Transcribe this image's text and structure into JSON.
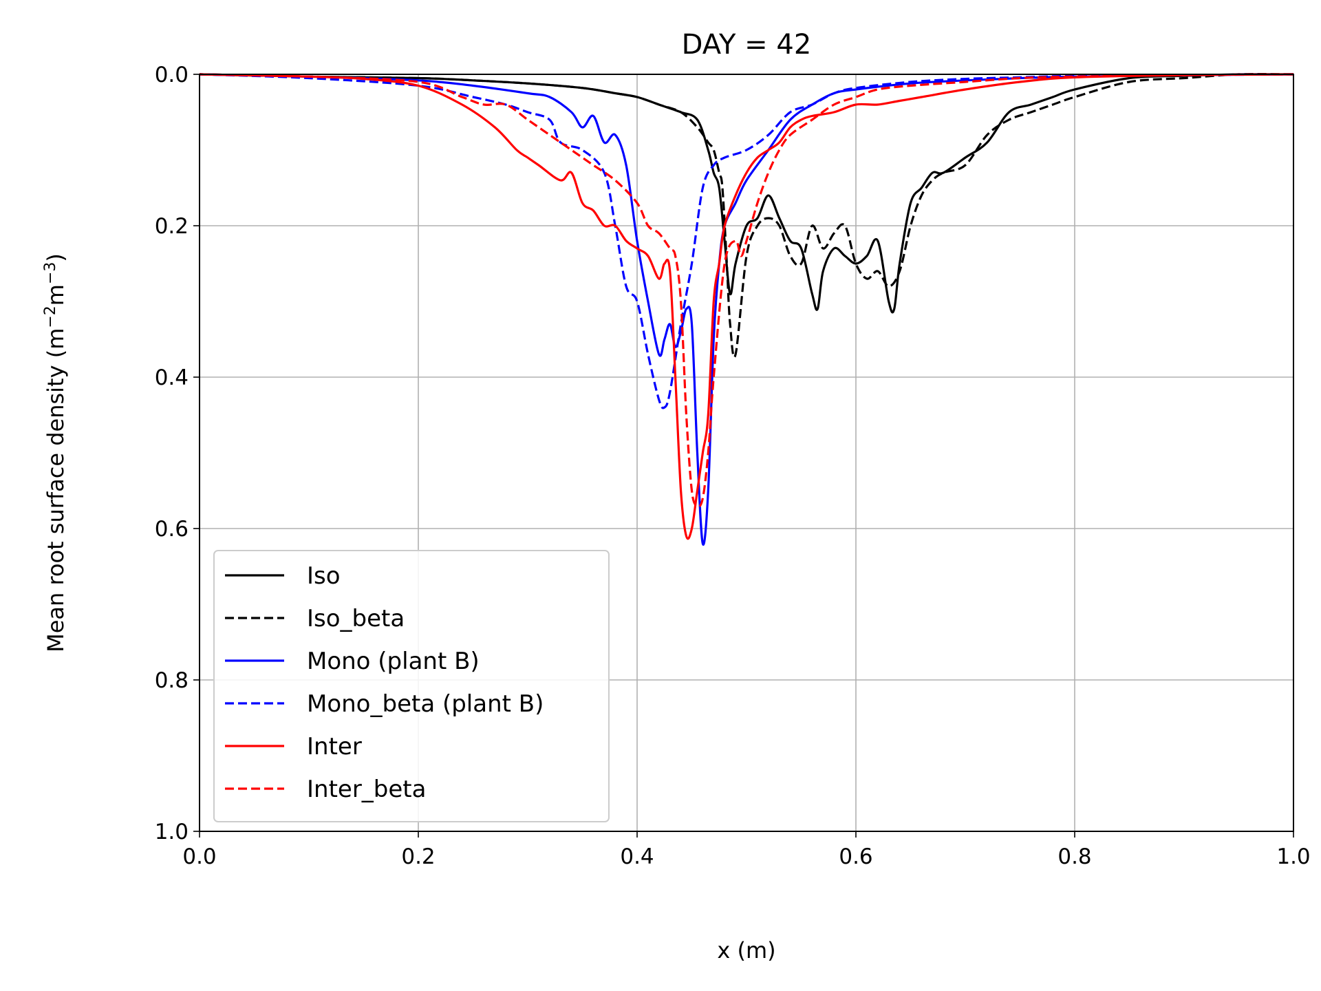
{
  "chart_data": {
    "type": "line",
    "title": "DAY = 42",
    "xlabel": "x (m)",
    "ylabel": {
      "base": "Mean root surface density (m",
      "sup1": "−2",
      "mid": "m",
      "sup2": "−3",
      "end": ")"
    },
    "xlim": [
      0.0,
      1.0
    ],
    "ylim": [
      0.0,
      1.0
    ],
    "y_inverted": true,
    "grid": true,
    "legend_position": "lower-left",
    "xticks": [
      0.0,
      0.2,
      0.4,
      0.6,
      0.8,
      1.0
    ],
    "yticks": [
      0.0,
      0.2,
      0.4,
      0.6,
      0.8,
      1.0
    ],
    "xtick_labels": [
      "0.0",
      "0.2",
      "0.4",
      "0.6",
      "0.8",
      "1.0"
    ],
    "ytick_labels": [
      "0.0",
      "0.2",
      "0.4",
      "0.6",
      "0.8",
      "1.0"
    ],
    "series": [
      {
        "name": "Iso",
        "color": "#000000",
        "dashed": false,
        "x": [
          0.0,
          0.1,
          0.2,
          0.25,
          0.3,
          0.35,
          0.38,
          0.4,
          0.42,
          0.44,
          0.455,
          0.465,
          0.47,
          0.475,
          0.48,
          0.485,
          0.49,
          0.5,
          0.51,
          0.52,
          0.53,
          0.54,
          0.55,
          0.56,
          0.565,
          0.57,
          0.58,
          0.59,
          0.6,
          0.61,
          0.62,
          0.63,
          0.635,
          0.64,
          0.65,
          0.66,
          0.67,
          0.68,
          0.7,
          0.72,
          0.74,
          0.76,
          0.78,
          0.8,
          0.85,
          0.9,
          0.95,
          1.0
        ],
        "y": [
          0.0,
          0.003,
          0.005,
          0.008,
          0.012,
          0.018,
          0.025,
          0.03,
          0.04,
          0.05,
          0.06,
          0.1,
          0.13,
          0.15,
          0.22,
          0.29,
          0.25,
          0.2,
          0.19,
          0.16,
          0.19,
          0.22,
          0.23,
          0.29,
          0.31,
          0.26,
          0.23,
          0.24,
          0.25,
          0.24,
          0.22,
          0.3,
          0.31,
          0.25,
          0.17,
          0.15,
          0.13,
          0.13,
          0.11,
          0.09,
          0.05,
          0.04,
          0.03,
          0.02,
          0.005,
          0.002,
          0.0,
          0.0
        ]
      },
      {
        "name": "Iso_beta",
        "color": "#000000",
        "dashed": true,
        "x": [
          0.0,
          0.1,
          0.2,
          0.25,
          0.3,
          0.35,
          0.38,
          0.4,
          0.42,
          0.44,
          0.455,
          0.465,
          0.47,
          0.475,
          0.478,
          0.482,
          0.485,
          0.49,
          0.5,
          0.51,
          0.52,
          0.53,
          0.54,
          0.55,
          0.56,
          0.57,
          0.58,
          0.59,
          0.6,
          0.61,
          0.62,
          0.63,
          0.64,
          0.65,
          0.66,
          0.67,
          0.68,
          0.7,
          0.72,
          0.74,
          0.76,
          0.78,
          0.8,
          0.85,
          0.9,
          0.95,
          1.0
        ],
        "y": [
          0.0,
          0.003,
          0.005,
          0.008,
          0.012,
          0.018,
          0.025,
          0.03,
          0.04,
          0.05,
          0.07,
          0.09,
          0.1,
          0.13,
          0.15,
          0.25,
          0.33,
          0.37,
          0.24,
          0.2,
          0.19,
          0.2,
          0.24,
          0.25,
          0.2,
          0.23,
          0.21,
          0.2,
          0.25,
          0.27,
          0.26,
          0.28,
          0.26,
          0.2,
          0.16,
          0.14,
          0.13,
          0.12,
          0.08,
          0.06,
          0.05,
          0.04,
          0.03,
          0.01,
          0.005,
          0.0,
          0.0
        ]
      },
      {
        "name": "Mono (plant B)",
        "color": "#0000ff",
        "dashed": false,
        "x": [
          0.0,
          0.1,
          0.2,
          0.25,
          0.3,
          0.32,
          0.34,
          0.35,
          0.36,
          0.37,
          0.38,
          0.39,
          0.4,
          0.41,
          0.42,
          0.425,
          0.43,
          0.435,
          0.44,
          0.445,
          0.45,
          0.455,
          0.46,
          0.465,
          0.47,
          0.475,
          0.48,
          0.49,
          0.5,
          0.52,
          0.54,
          0.56,
          0.58,
          0.6,
          0.65,
          0.7,
          0.75,
          0.8,
          0.9,
          1.0
        ],
        "y": [
          0.0,
          0.003,
          0.008,
          0.015,
          0.025,
          0.03,
          0.05,
          0.07,
          0.055,
          0.09,
          0.08,
          0.12,
          0.22,
          0.3,
          0.37,
          0.35,
          0.33,
          0.36,
          0.34,
          0.31,
          0.33,
          0.5,
          0.62,
          0.55,
          0.35,
          0.25,
          0.2,
          0.17,
          0.14,
          0.1,
          0.06,
          0.04,
          0.025,
          0.02,
          0.012,
          0.008,
          0.005,
          0.003,
          0.001,
          0.0
        ]
      },
      {
        "name": "Mono_beta (plant B)",
        "color": "#0000ff",
        "dashed": true,
        "x": [
          0.0,
          0.1,
          0.2,
          0.25,
          0.28,
          0.3,
          0.32,
          0.33,
          0.35,
          0.37,
          0.38,
          0.39,
          0.4,
          0.41,
          0.42,
          0.425,
          0.43,
          0.44,
          0.45,
          0.46,
          0.47,
          0.48,
          0.5,
          0.52,
          0.54,
          0.56,
          0.58,
          0.6,
          0.65,
          0.7,
          0.75,
          0.8,
          0.9,
          1.0
        ],
        "y": [
          0.0,
          0.005,
          0.015,
          0.03,
          0.04,
          0.05,
          0.06,
          0.09,
          0.1,
          0.13,
          0.2,
          0.28,
          0.3,
          0.37,
          0.43,
          0.44,
          0.42,
          0.33,
          0.25,
          0.15,
          0.12,
          0.11,
          0.1,
          0.08,
          0.05,
          0.04,
          0.025,
          0.018,
          0.01,
          0.006,
          0.004,
          0.002,
          0.001,
          0.0
        ]
      },
      {
        "name": "Inter",
        "color": "#ff0000",
        "dashed": false,
        "x": [
          0.0,
          0.1,
          0.15,
          0.2,
          0.24,
          0.27,
          0.29,
          0.3,
          0.31,
          0.33,
          0.34,
          0.35,
          0.36,
          0.37,
          0.38,
          0.39,
          0.4,
          0.41,
          0.42,
          0.425,
          0.43,
          0.435,
          0.44,
          0.445,
          0.45,
          0.455,
          0.46,
          0.465,
          0.47,
          0.475,
          0.48,
          0.49,
          0.5,
          0.51,
          0.52,
          0.53,
          0.54,
          0.55,
          0.56,
          0.58,
          0.6,
          0.62,
          0.64,
          0.66,
          0.7,
          0.75,
          0.8,
          0.9,
          1.0
        ],
        "y": [
          0.0,
          0.003,
          0.006,
          0.015,
          0.04,
          0.07,
          0.1,
          0.11,
          0.12,
          0.14,
          0.13,
          0.17,
          0.18,
          0.2,
          0.2,
          0.22,
          0.23,
          0.24,
          0.27,
          0.25,
          0.26,
          0.4,
          0.55,
          0.61,
          0.6,
          0.55,
          0.5,
          0.45,
          0.3,
          0.25,
          0.2,
          0.16,
          0.13,
          0.11,
          0.1,
          0.09,
          0.07,
          0.06,
          0.055,
          0.05,
          0.04,
          0.04,
          0.035,
          0.03,
          0.02,
          0.01,
          0.004,
          0.001,
          0.0
        ]
      },
      {
        "name": "Inter_beta",
        "color": "#ff0000",
        "dashed": true,
        "x": [
          0.0,
          0.1,
          0.2,
          0.24,
          0.26,
          0.28,
          0.3,
          0.32,
          0.34,
          0.35,
          0.36,
          0.38,
          0.4,
          0.41,
          0.42,
          0.43,
          0.435,
          0.44,
          0.445,
          0.45,
          0.455,
          0.46,
          0.465,
          0.47,
          0.48,
          0.49,
          0.495,
          0.5,
          0.51,
          0.52,
          0.53,
          0.54,
          0.56,
          0.58,
          0.6,
          0.62,
          0.65,
          0.7,
          0.75,
          0.8,
          0.9,
          1.0
        ],
        "y": [
          0.0,
          0.003,
          0.01,
          0.03,
          0.04,
          0.04,
          0.06,
          0.08,
          0.1,
          0.11,
          0.12,
          0.14,
          0.17,
          0.2,
          0.21,
          0.23,
          0.24,
          0.3,
          0.45,
          0.55,
          0.57,
          0.56,
          0.5,
          0.4,
          0.25,
          0.22,
          0.24,
          0.22,
          0.17,
          0.13,
          0.1,
          0.08,
          0.06,
          0.04,
          0.03,
          0.02,
          0.015,
          0.01,
          0.005,
          0.003,
          0.001,
          0.0
        ]
      }
    ]
  }
}
